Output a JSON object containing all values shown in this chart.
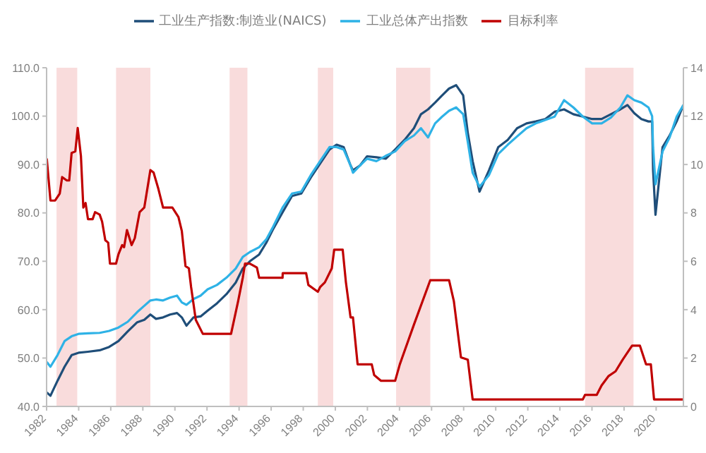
{
  "chart_data": {
    "type": "line",
    "x": [
      1982.01,
      1982.24,
      1982.68,
      1983.12,
      1983.56,
      1983.99,
      1984.58,
      1985.31,
      1985.9,
      1986.48,
      1987.06,
      1987.65,
      1988.09,
      1988.47,
      1988.82,
      1989.26,
      1989.7,
      1990.13,
      1990.43,
      1990.72,
      1991.16,
      1991.6,
      1992.04,
      1992.62,
      1993.21,
      1993.79,
      1994.23,
      1994.67,
      1995.25,
      1995.69,
      1996.13,
      1996.71,
      1997.3,
      1997.88,
      1998.47,
      1999.05,
      1999.64,
      2000.08,
      2000.52,
      2000.95,
      2001.1,
      2001.54,
      2001.98,
      2002.56,
      2003.15,
      2003.73,
      2004.32,
      2004.9,
      2005.34,
      2005.78,
      2006.22,
      2006.66,
      2007.09,
      2007.53,
      2007.97,
      2008.26,
      2008.56,
      2008.99,
      2009.58,
      2010.16,
      2010.75,
      2011.33,
      2011.92,
      2012.5,
      2013.09,
      2013.67,
      2014.26,
      2014.84,
      2015.43,
      2016.01,
      2016.6,
      2017.18,
      2017.77,
      2018.21,
      2018.64,
      2019.08,
      2019.52,
      2019.75,
      2019.81,
      2019.96,
      2020.4,
      2020.84,
      2021.28,
      2021.7
    ],
    "xlim": [
      1982,
      2021.7
    ],
    "xticks": [
      1982,
      1984,
      1986,
      1988,
      1990,
      1992,
      1994,
      1996,
      1998,
      2000,
      2002,
      2004,
      2006,
      2008,
      2010,
      2012,
      2014,
      2016,
      2018,
      2020
    ],
    "ylim": [
      40,
      110
    ],
    "yticks": [
      {
        "value": 40,
        "label": "40.0"
      },
      {
        "value": 50,
        "label": "50.0"
      },
      {
        "value": 60,
        "label": "60.0"
      },
      {
        "value": 70,
        "label": "70.0"
      },
      {
        "value": 80,
        "label": "80.0"
      },
      {
        "value": 90,
        "label": "90.0"
      },
      {
        "value": 100,
        "label": "100.0"
      },
      {
        "value": 110,
        "label": "110.0"
      }
    ],
    "y2lim": [
      0,
      14
    ],
    "y2ticks": [
      0,
      2,
      4,
      6,
      8,
      10,
      12,
      14
    ],
    "legend": "top",
    "series": [
      {
        "name": "工业生产指数:制造业(NAICS)",
        "color": "#1f4e79",
        "values": [
          42.9,
          42.2,
          45.3,
          48.2,
          50.6,
          51.1,
          51.3,
          51.6,
          52.3,
          53.5,
          55.5,
          57.4,
          57.9,
          59.0,
          58.1,
          58.4,
          59.0,
          59.3,
          58.4,
          56.7,
          58.4,
          58.6,
          59.8,
          61.3,
          63.2,
          65.6,
          68.5,
          70.0,
          71.4,
          73.8,
          76.7,
          80.1,
          83.5,
          84.0,
          87.3,
          90.2,
          93.1,
          94.1,
          93.6,
          89.8,
          88.8,
          89.8,
          91.7,
          91.5,
          91.2,
          93.1,
          95.1,
          97.5,
          100.4,
          101.4,
          102.8,
          104.3,
          105.7,
          106.4,
          104.3,
          96.5,
          90.7,
          84.4,
          88.8,
          93.6,
          95.1,
          97.5,
          98.5,
          98.9,
          99.4,
          100.9,
          101.4,
          100.4,
          99.9,
          99.4,
          99.4,
          100.4,
          101.4,
          102.3,
          100.6,
          99.4,
          98.9,
          98.9,
          88.8,
          79.6,
          93.6,
          96.0,
          98.9,
          102.3
        ]
      },
      {
        "name": "工业总体产出指数",
        "color": "#2eb2e6",
        "values": [
          49.2,
          48.2,
          50.6,
          53.5,
          54.5,
          55.0,
          55.1,
          55.2,
          55.6,
          56.3,
          57.5,
          59.5,
          60.8,
          61.9,
          62.1,
          61.9,
          62.5,
          62.9,
          61.5,
          61.0,
          62.2,
          62.9,
          64.2,
          65.1,
          66.6,
          68.5,
          70.9,
          71.9,
          72.9,
          74.5,
          77.2,
          81.1,
          84.0,
          84.4,
          87.8,
          90.7,
          93.6,
          93.6,
          93.1,
          89.8,
          88.3,
          89.8,
          91.2,
          90.7,
          91.8,
          92.7,
          94.8,
          96.0,
          97.5,
          95.6,
          98.5,
          99.9,
          101.1,
          101.8,
          100.4,
          94.6,
          88.3,
          85.4,
          87.8,
          92.2,
          94.1,
          95.8,
          97.5,
          98.5,
          99.2,
          99.9,
          103.3,
          101.8,
          99.9,
          98.5,
          98.5,
          99.7,
          101.8,
          104.3,
          103.3,
          102.8,
          101.8,
          100.0,
          93.6,
          85.9,
          92.7,
          95.6,
          99.9,
          102.3
        ]
      },
      {
        "name": "目标利率",
        "color": "#c00000",
        "axis": "y2",
        "line_style": "solid",
        "x": [
          1982.01,
          1982.24,
          1982.53,
          1982.82,
          1982.97,
          1983.26,
          1983.41,
          1983.56,
          1983.79,
          1983.94,
          1984.14,
          1984.29,
          1984.43,
          1984.58,
          1984.87,
          1985.02,
          1985.31,
          1985.46,
          1985.66,
          1985.84,
          1985.95,
          1986.33,
          1986.48,
          1986.71,
          1986.83,
          1987.01,
          1987.12,
          1987.3,
          1987.5,
          1987.8,
          1988.09,
          1988.47,
          1988.67,
          1988.97,
          1989.26,
          1989.84,
          1990.22,
          1990.43,
          1990.66,
          1990.87,
          1991.01,
          1991.3,
          1991.74,
          1993.5,
          1993.94,
          1994.23,
          1994.37,
          1994.67,
          1995.11,
          1995.25,
          1996.71,
          1996.72,
          1998.18,
          1998.32,
          1998.91,
          1999.05,
          1999.35,
          1999.78,
          1999.93,
          2000.46,
          2000.66,
          2000.95,
          2001.1,
          2001.39,
          2002.27,
          2002.42,
          2002.85,
          2003.73,
          2004.02,
          2004.9,
          2005.92,
          2007.09,
          2007.39,
          2007.83,
          2008.26,
          2008.56,
          2015.43,
          2015.57,
          2016.3,
          2016.6,
          2017.04,
          2017.47,
          2017.91,
          2018.5,
          2018.99,
          2019.37,
          2019.67,
          2019.87,
          2021.7
        ],
        "values": [
          10.25,
          8.51,
          8.51,
          8.8,
          9.48,
          9.34,
          9.34,
          10.48,
          10.54,
          11.51,
          10.35,
          8.22,
          8.41,
          7.74,
          7.74,
          8.03,
          7.93,
          7.64,
          6.87,
          6.77,
          5.9,
          5.9,
          6.29,
          6.67,
          6.58,
          7.29,
          7.06,
          6.67,
          6.96,
          8.03,
          8.22,
          9.77,
          9.67,
          8.99,
          8.22,
          8.22,
          7.83,
          7.25,
          5.8,
          5.71,
          4.93,
          3.58,
          3.0,
          3.0,
          4.35,
          5.32,
          5.9,
          5.9,
          5.74,
          5.32,
          5.32,
          5.51,
          5.51,
          5.02,
          4.74,
          4.93,
          5.13,
          5.71,
          6.48,
          6.48,
          5.13,
          3.68,
          3.68,
          1.74,
          1.74,
          1.3,
          1.06,
          1.06,
          1.74,
          3.38,
          5.22,
          5.22,
          4.35,
          2.03,
          1.93,
          0.29,
          0.29,
          0.48,
          0.48,
          0.87,
          1.26,
          1.45,
          1.93,
          2.51,
          2.51,
          1.74,
          1.74,
          0.29,
          0.29
        ]
      }
    ],
    "bands": [
      {
        "axis": "x",
        "from": 1982.62,
        "to": 1983.91,
        "color": "#f9dcdc"
      },
      {
        "axis": "x",
        "from": 1986.33,
        "to": 1988.47,
        "color": "#f9dcdc"
      },
      {
        "axis": "x",
        "from": 1993.41,
        "to": 1994.52,
        "color": "#f9dcdc"
      },
      {
        "axis": "x",
        "from": 1998.91,
        "to": 1999.87,
        "color": "#f9dcdc"
      },
      {
        "axis": "x",
        "from": 2003.79,
        "to": 2005.92,
        "color": "#f9dcdc"
      },
      {
        "axis": "x",
        "from": 2015.57,
        "to": 2018.59,
        "color": "#f9dcdc"
      }
    ]
  }
}
